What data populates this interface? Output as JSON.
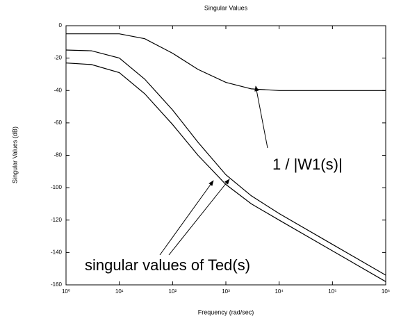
{
  "chart_data": {
    "type": "line",
    "title": "Singular Values",
    "x_label": "Frequency (rad/sec)",
    "y_label": "Singular Values (dB)",
    "xscale": "log",
    "x": [
      1,
      3,
      10,
      30,
      100,
      300,
      1000,
      3000,
      10000,
      100000,
      1000000
    ],
    "series": [
      {
        "color": "#000000",
        "values": [
          -5,
          -5,
          -5,
          -8,
          -17,
          -27,
          -35,
          -39,
          -40,
          -40,
          -40
        ]
      },
      {
        "color": "#000000",
        "values": [
          -15,
          -15.5,
          -20,
          -33,
          -52,
          -72,
          -92,
          -105,
          -116,
          -135,
          -154
        ]
      },
      {
        "color": "#000000",
        "values": [
          -23,
          -24,
          -29,
          -42,
          -61,
          -80,
          -98,
          -110,
          -120,
          -139,
          -158
        ]
      }
    ],
    "xlim": [
      1,
      1000000
    ],
    "xticks": [
      {
        "value": 1,
        "label": "10⁰"
      },
      {
        "value": 10,
        "label": "10¹"
      },
      {
        "value": 100,
        "label": "10²"
      },
      {
        "value": 1000,
        "label": "10³"
      },
      {
        "value": 10000,
        "label": "10⁴"
      },
      {
        "value": 100000,
        "label": "10⁵"
      },
      {
        "value": 1000000,
        "label": "10⁶"
      }
    ],
    "ylim": [
      -160,
      0
    ],
    "yticks": [
      -160,
      -140,
      -120,
      -100,
      -80,
      -60,
      -40,
      -20,
      0
    ],
    "annotations": [
      "1 / |W1(s)|",
      "singular values of Ted(s)"
    ]
  }
}
